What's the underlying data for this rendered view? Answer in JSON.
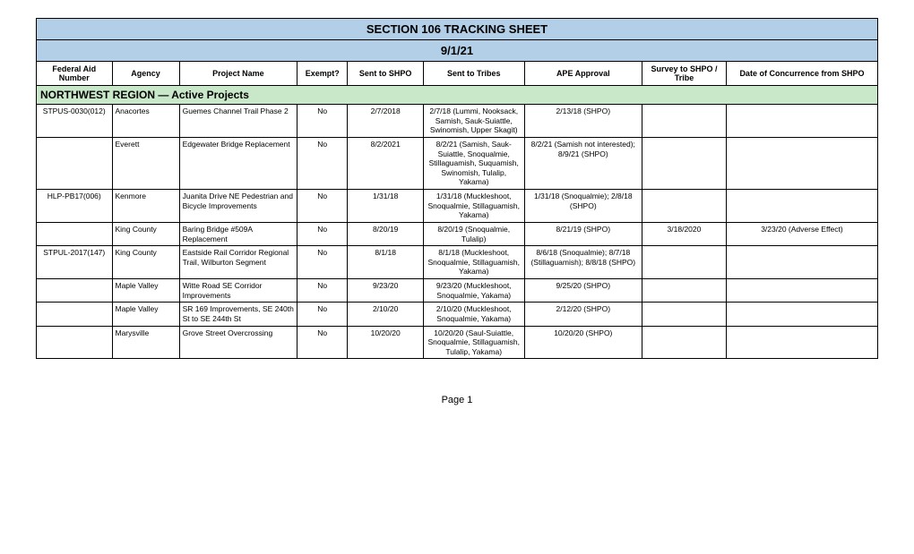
{
  "title": "SECTION 106 TRACKING SHEET",
  "date": "9/1/21",
  "columns": [
    "Federal Aid Number",
    "Agency",
    "Project Name",
    "Exempt?",
    "Sent to SHPO",
    "Sent to Tribes",
    "APE Approval",
    "Survey to SHPO / Tribe",
    "Date of Concurrence from SHPO"
  ],
  "region_header": "NORTHWEST REGION — Active Projects",
  "rows": [
    {
      "faid": "STPUS-0030(012)",
      "agency": "Anacortes",
      "project": "Guemes Channel Trail Phase 2",
      "exempt": "No",
      "sent_shpo": "2/7/2018",
      "sent_tribes": "2/7/18 (Lummi, Nooksack, Samish, Sauk-Suiattle, Swinomish, Upper Skagit)",
      "ape": "2/13/18 (SHPO)",
      "survey": "",
      "concurrence": ""
    },
    {
      "faid": "",
      "agency": "Everett",
      "project": "Edgewater Bridge Replacement",
      "exempt": "No",
      "sent_shpo": "8/2/2021",
      "sent_tribes": "8/2/21 (Samish, Sauk-Suiattle, Snoqualmie, Stillaguamish, Suquamish, Swinomish, Tulalip, Yakama)",
      "ape": "8/2/21 (Samish not interested); 8/9/21 (SHPO)",
      "survey": "",
      "concurrence": ""
    },
    {
      "faid": "HLP-PB17(006)",
      "agency": "Kenmore",
      "project": "Juanita Drive NE Pedestrian and Bicycle Improvements",
      "exempt": "No",
      "sent_shpo": "1/31/18",
      "sent_tribes": "1/31/18 (Muckleshoot, Snoqualmie, Stillaguamish, Yakama)",
      "ape": "1/31/18 (Snoqualmie); 2/8/18 (SHPO)",
      "survey": "",
      "concurrence": ""
    },
    {
      "faid": "",
      "agency": "King County",
      "project": "Baring Bridge #509A Replacement",
      "exempt": "No",
      "sent_shpo": "8/20/19",
      "sent_tribes": "8/20/19 (Snoqualmie, Tulalip)",
      "ape": "8/21/19 (SHPO)",
      "survey": "3/18/2020",
      "concurrence": "3/23/20 (Adverse Effect)"
    },
    {
      "faid": "STPUL-2017(147)",
      "agency": "King County",
      "project": "Eastside Rail Corridor Regional Trail, Wilburton Segment",
      "exempt": "No",
      "sent_shpo": "8/1/18",
      "sent_tribes": "8/1/18 (Muckleshoot, Snoqualmie, Stillaguamish, Yakama)",
      "ape": "8/6/18 (Snoqualmie); 8/7/18 (Stillaguamish); 8/8/18 (SHPO)",
      "survey": "",
      "concurrence": ""
    },
    {
      "faid": "",
      "agency": "Maple Valley",
      "project": "Witte Road SE Corridor Improvements",
      "exempt": "No",
      "sent_shpo": "9/23/20",
      "sent_tribes": "9/23/20 (Muckleshoot, Snoqualmie, Yakama)",
      "ape": "9/25/20 (SHPO)",
      "survey": "",
      "concurrence": ""
    },
    {
      "faid": "",
      "agency": "Maple Valley",
      "project": "SR 169 Improvements, SE 240th St to SE 244th St",
      "exempt": "No",
      "sent_shpo": "2/10/20",
      "sent_tribes": "2/10/20 (Muckleshoot, Snoqualmie, Yakama)",
      "ape": "2/12/20 (SHPO)",
      "survey": "",
      "concurrence": ""
    },
    {
      "faid": "",
      "agency": "Marysville",
      "project": "Grove Street Overcrossing",
      "exempt": "No",
      "sent_shpo": "10/20/20",
      "sent_tribes": "10/20/20 (Saul-Suiattle, Snoqualmie, Stillaguamish, Tulalip, Yakama)",
      "ape": "10/20/20 (SHPO)",
      "survey": "",
      "concurrence": ""
    }
  ],
  "page_label": "Page 1",
  "colors": {
    "title_bg": "#b3cfe7",
    "region_bg": "#c9e7c9",
    "border": "#000000",
    "background": "#ffffff"
  },
  "font_sizes": {
    "title": 13,
    "region": 12,
    "header": 9,
    "cell": 8.5,
    "page": 11
  }
}
